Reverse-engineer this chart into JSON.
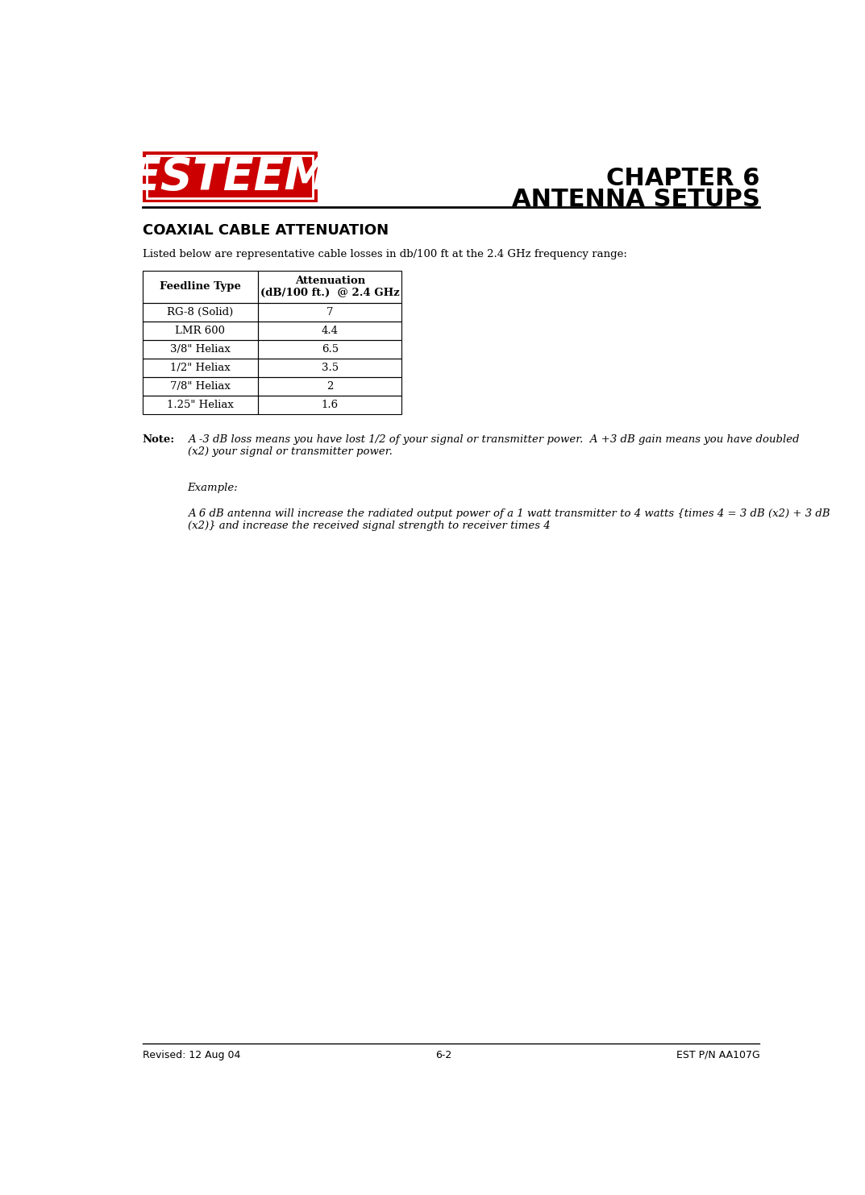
{
  "page_width": 10.73,
  "page_height": 14.83,
  "bg_color": "#ffffff",
  "header": {
    "logo_color": "#cc0000",
    "chapter_line1": "CHAPTER 6",
    "chapter_line2": "ANTENNA SETUPS",
    "chapter_fontsize": 22
  },
  "section_title": "COAXIAL CABLE ATTENUATION",
  "intro_text": "Listed below are representative cable losses in db/100 ft at the 2.4 GHz frequency range:",
  "table_col_headers": [
    "Feedline Type",
    "Attenuation\n(dB/100 ft.)  @ 2.4 GHz"
  ],
  "table_rows": [
    [
      "RG-8 (Solid)",
      "7"
    ],
    [
      "LMR 600",
      "4.4"
    ],
    [
      "3/8\" Heliax",
      "6.5"
    ],
    [
      "1/2\" Heliax",
      "3.5"
    ],
    [
      "7/8\" Heliax",
      "2"
    ],
    [
      "1.25\" Heliax",
      "1.6"
    ]
  ],
  "note_label": "Note:",
  "note_text": "A -3 dB loss means you have lost 1/2 of your signal or transmitter power.  A +3 dB gain means you have doubled\n(x2) your signal or transmitter power.",
  "example_label": "Example:",
  "example_text": "A 6 dB antenna will increase the radiated output power of a 1 watt transmitter to 4 watts {times 4 = 3 dB (x2) + 3 dB\n(x2)} and increase the received signal strength to receiver times 4",
  "footer_left": "Revised: 12 Aug 04",
  "footer_center": "6-2",
  "footer_right": "EST P/N AA107G"
}
